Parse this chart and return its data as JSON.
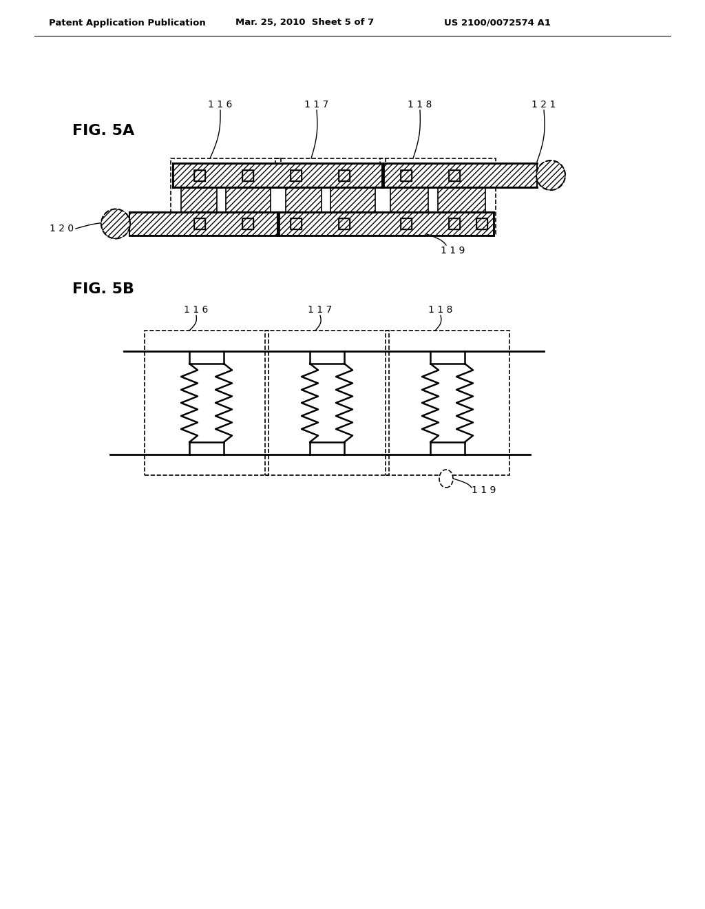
{
  "header_left": "Patent Application Publication",
  "header_mid": "Mar. 25, 2010  Sheet 5 of 7",
  "header_right": "US 2100/0072574 A1",
  "fig5a_label": "FIG. 5A",
  "fig5b_label": "FIG. 5B",
  "bg_color": "#ffffff",
  "line_color": "#000000",
  "lbl_116": "1 1 6",
  "lbl_117": "1 1 7",
  "lbl_118": "1 1 8",
  "lbl_119": "1 1 9",
  "lbl_120": "1 2 0",
  "lbl_121": "1 2 1"
}
